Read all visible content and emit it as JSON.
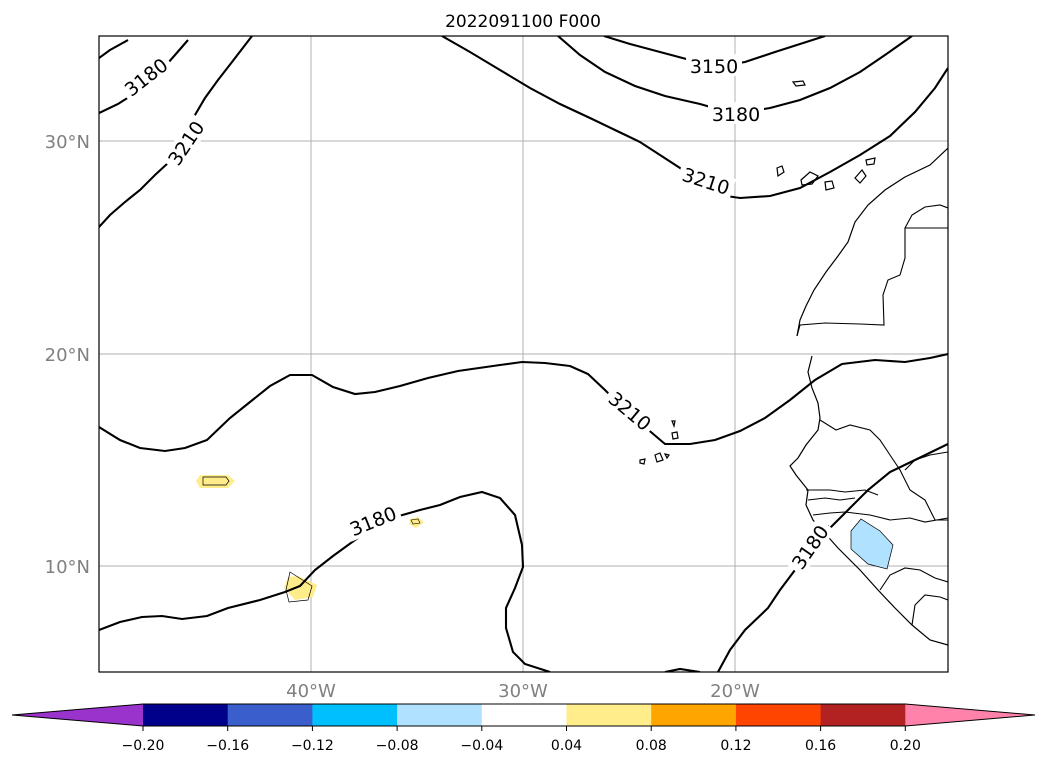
{
  "title": "2022091100 F000",
  "map": {
    "lat_labels": [
      "30°N",
      "20°N",
      "10°N"
    ],
    "lon_labels": [
      "40°W",
      "30°W",
      "20°W"
    ],
    "contour_labels": [
      "3150",
      "3180",
      "3210",
      "3180",
      "3210",
      "3210",
      "3180",
      "3180"
    ]
  },
  "colorbar": {
    "tick_labels": [
      "−0.20",
      "−0.16",
      "−0.12",
      "−0.08",
      "−0.04",
      "0.04",
      "0.08",
      "0.12",
      "0.16",
      "0.20"
    ],
    "colors": [
      "#9933cc",
      "#00008b",
      "#3a5fcd",
      "#00bfff",
      "#b0e2ff",
      "#ffffff",
      "#ffec8b",
      "#ffa500",
      "#ff4500",
      "#b22222",
      "#ff82ab"
    ]
  }
}
